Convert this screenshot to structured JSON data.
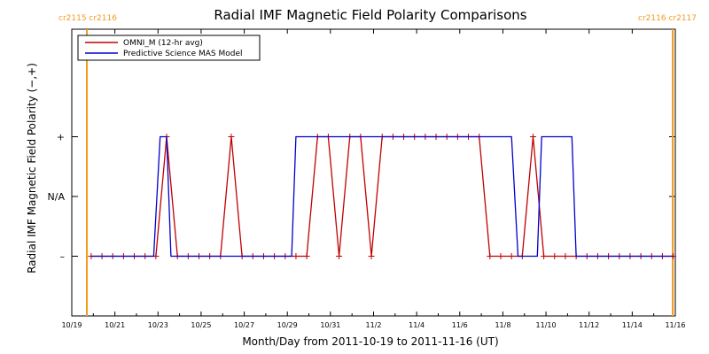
{
  "chart_data": {
    "type": "line",
    "title": "Radial IMF Magnetic Field Polarity Comparisons",
    "xlabel": "Month/Day from 2011-10-19 to 2011-11-16 (UT)",
    "ylabel": "Radial IMF Magnetic Field Polarity (−,+)",
    "xlim": [
      0,
      28
    ],
    "ylim": [
      -2,
      2.8
    ],
    "y_ticks": [
      {
        "value": 1,
        "label": "+"
      },
      {
        "value": 0,
        "label": "N/A"
      },
      {
        "value": -1,
        "label": "–"
      }
    ],
    "x_ticks": [
      {
        "value": 0,
        "label": "10/19"
      },
      {
        "value": 2,
        "label": "10/21"
      },
      {
        "value": 4,
        "label": "10/23"
      },
      {
        "value": 6,
        "label": "10/25"
      },
      {
        "value": 8,
        "label": "10/27"
      },
      {
        "value": 10,
        "label": "10/29"
      },
      {
        "value": 12,
        "label": "10/31"
      },
      {
        "value": 14,
        "label": "11/2"
      },
      {
        "value": 16,
        "label": "11/4"
      },
      {
        "value": 18,
        "label": "11/6"
      },
      {
        "value": 20,
        "label": "11/8"
      },
      {
        "value": 22,
        "label": "11/10"
      },
      {
        "value": 24,
        "label": "11/12"
      },
      {
        "value": 26,
        "label": "11/14"
      },
      {
        "value": 28,
        "label": "11/16"
      }
    ],
    "carrington_markers": [
      {
        "x": 0.7,
        "label": "cr2115 cr2116",
        "anchor": "left"
      },
      {
        "x": 27.88,
        "label": "cr2116 cr2117",
        "anchor": "right"
      }
    ],
    "legend": {
      "position": "top-left"
    },
    "series": [
      {
        "name": "OMNI_M (12-hr avg)",
        "color": "#c00000",
        "markers": true,
        "x": [
          0.9,
          1.4,
          1.9,
          2.4,
          2.9,
          3.4,
          3.9,
          4.4,
          4.9,
          5.4,
          5.9,
          6.4,
          6.9,
          7.4,
          7.9,
          8.4,
          8.9,
          9.4,
          9.9,
          10.4,
          10.9,
          11.4,
          11.9,
          12.4,
          12.9,
          13.4,
          13.9,
          14.4,
          14.9,
          15.4,
          15.9,
          16.4,
          16.9,
          17.4,
          17.9,
          18.4,
          18.9,
          19.4,
          19.9,
          20.4,
          20.9,
          21.4,
          21.9,
          22.4,
          22.9,
          23.4,
          23.9,
          24.4,
          24.9,
          25.4,
          25.9,
          26.4,
          26.9,
          27.4,
          27.9
        ],
        "y": [
          -1,
          -1,
          -1,
          -1,
          -1,
          -1,
          -1,
          1,
          -1,
          -1,
          -1,
          -1,
          -1,
          1,
          -1,
          -1,
          -1,
          -1,
          -1,
          -1,
          -1,
          1,
          1,
          -1,
          1,
          1,
          -1,
          1,
          1,
          1,
          1,
          1,
          1,
          1,
          1,
          1,
          1,
          -1,
          -1,
          -1,
          -1,
          1,
          -1,
          -1,
          -1,
          -1,
          -1,
          -1,
          -1,
          -1,
          -1,
          -1,
          -1,
          -1,
          -1
        ]
      },
      {
        "name": "Predictive Science MAS Model",
        "color": "#0000cc",
        "markers": false,
        "x": [
          0.9,
          3.8,
          4.1,
          4.4,
          4.6,
          10.2,
          10.4,
          20.4,
          20.7,
          20.9,
          21.2,
          21.6,
          21.8,
          23.2,
          23.4,
          27.9
        ],
        "y": [
          -1,
          -1,
          1,
          1,
          -1,
          -1,
          1,
          1,
          -1,
          -1,
          -1,
          -1,
          1,
          1,
          -1,
          -1
        ]
      }
    ]
  }
}
